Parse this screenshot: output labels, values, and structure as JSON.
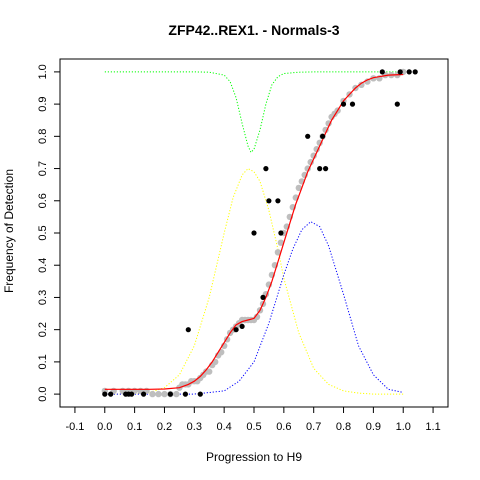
{
  "chart_data": {
    "type": "scatter",
    "title": "ZFP42..REX1. - Normals-3",
    "xlabel": "Progression to H9",
    "ylabel": "Frequency of Detection",
    "xlim": [
      -0.15,
      1.15
    ],
    "ylim": [
      -0.04,
      1.04
    ],
    "xticks": [
      -0.1,
      0.0,
      0.1,
      0.2,
      0.3,
      0.4,
      0.5,
      0.6,
      0.7,
      0.8,
      0.9,
      1.0,
      1.1
    ],
    "xtick_labels": [
      "-0.1",
      "0.0",
      "0.1",
      "0.2",
      "0.3",
      "0.4",
      "0.5",
      "0.6",
      "0.7",
      "0.8",
      "0.9",
      "1.0",
      "1.1"
    ],
    "yticks": [
      0.0,
      0.1,
      0.2,
      0.3,
      0.4,
      0.5,
      0.6,
      0.7,
      0.8,
      0.9,
      1.0
    ],
    "ytick_labels": [
      "0.0",
      "0.1",
      "0.2",
      "0.3",
      "0.4",
      "0.5",
      "0.6",
      "0.7",
      "0.8",
      "0.9",
      "1.0"
    ],
    "colors": {
      "observed": "#000000",
      "smoothed": "#bebebe",
      "fit": "#ff0000",
      "green_curve": "#00ff00",
      "yellow_curve": "#ffff00",
      "blue_curve": "#0000ff",
      "frame": "#000000"
    },
    "series": [
      {
        "kind": "observed-points",
        "x": [
          0.0,
          0.02,
          0.07,
          0.08,
          0.09,
          0.13,
          0.22,
          0.27,
          0.28,
          0.32,
          0.44,
          0.46,
          0.5,
          0.53,
          0.54,
          0.55,
          0.58,
          0.59,
          0.68,
          0.72,
          0.73,
          0.74,
          0.8,
          0.83,
          0.93,
          0.98,
          0.99,
          1.02,
          1.04
        ],
        "y": [
          0.0,
          0.0,
          0.0,
          0.0,
          0.0,
          0.0,
          0.0,
          0.0,
          0.2,
          0.0,
          0.2,
          0.21,
          0.5,
          0.3,
          0.7,
          0.6,
          0.6,
          0.5,
          0.8,
          0.7,
          0.8,
          0.7,
          0.9,
          0.9,
          1.0,
          0.9,
          1.0,
          1.0,
          1.0
        ]
      },
      {
        "kind": "smoothed-points",
        "x": [
          0.0,
          0.03,
          0.06,
          0.08,
          0.1,
          0.12,
          0.14,
          0.16,
          0.18,
          0.2,
          0.22,
          0.24,
          0.25,
          0.26,
          0.27,
          0.28,
          0.29,
          0.3,
          0.31,
          0.32,
          0.33,
          0.34,
          0.35,
          0.36,
          0.37,
          0.38,
          0.39,
          0.4,
          0.41,
          0.42,
          0.43,
          0.44,
          0.45,
          0.46,
          0.47,
          0.48,
          0.49,
          0.5,
          0.51,
          0.52,
          0.53,
          0.54,
          0.55,
          0.56,
          0.57,
          0.58,
          0.59,
          0.6,
          0.61,
          0.62,
          0.63,
          0.64,
          0.65,
          0.66,
          0.67,
          0.68,
          0.69,
          0.7,
          0.71,
          0.72,
          0.73,
          0.74,
          0.75,
          0.76,
          0.77,
          0.78,
          0.8,
          0.82,
          0.84,
          0.86,
          0.88,
          0.9,
          0.92,
          0.94,
          0.96,
          0.98,
          1.0
        ],
        "y": [
          0.01,
          0.01,
          0.01,
          0.01,
          0.01,
          0.01,
          0.01,
          0.0,
          0.0,
          0.0,
          0.0,
          0.0,
          0.02,
          0.03,
          0.03,
          0.03,
          0.04,
          0.04,
          0.04,
          0.05,
          0.06,
          0.07,
          0.07,
          0.09,
          0.1,
          0.12,
          0.13,
          0.15,
          0.17,
          0.19,
          0.2,
          0.21,
          0.22,
          0.23,
          0.23,
          0.23,
          0.23,
          0.23,
          0.24,
          0.26,
          0.28,
          0.31,
          0.34,
          0.37,
          0.4,
          0.44,
          0.47,
          0.5,
          0.52,
          0.55,
          0.58,
          0.61,
          0.64,
          0.66,
          0.68,
          0.7,
          0.72,
          0.74,
          0.76,
          0.78,
          0.8,
          0.82,
          0.84,
          0.86,
          0.87,
          0.88,
          0.91,
          0.93,
          0.95,
          0.96,
          0.97,
          0.98,
          0.98,
          0.99,
          0.99,
          0.99,
          1.0
        ]
      },
      {
        "kind": "fit-line",
        "x": [
          0.0,
          0.05,
          0.1,
          0.15,
          0.2,
          0.25,
          0.28,
          0.3,
          0.32,
          0.34,
          0.36,
          0.38,
          0.4,
          0.42,
          0.44,
          0.46,
          0.48,
          0.5,
          0.52,
          0.54,
          0.56,
          0.58,
          0.6,
          0.62,
          0.64,
          0.66,
          0.68,
          0.7,
          0.72,
          0.74,
          0.76,
          0.78,
          0.8,
          0.82,
          0.84,
          0.86,
          0.88,
          0.9,
          0.95,
          1.0
        ],
        "y": [
          0.015,
          0.015,
          0.015,
          0.015,
          0.016,
          0.02,
          0.03,
          0.04,
          0.055,
          0.075,
          0.1,
          0.13,
          0.16,
          0.19,
          0.215,
          0.225,
          0.23,
          0.235,
          0.26,
          0.3,
          0.35,
          0.41,
          0.47,
          0.53,
          0.59,
          0.64,
          0.69,
          0.73,
          0.77,
          0.81,
          0.85,
          0.88,
          0.91,
          0.93,
          0.95,
          0.965,
          0.975,
          0.982,
          0.99,
          0.992
        ]
      },
      {
        "kind": "green-dotted",
        "x": [
          0.0,
          0.1,
          0.2,
          0.3,
          0.35,
          0.4,
          0.42,
          0.44,
          0.46,
          0.48,
          0.49,
          0.5,
          0.52,
          0.54,
          0.56,
          0.58,
          0.6,
          0.65,
          0.7,
          0.8,
          0.9,
          1.0
        ],
        "y": [
          1.0,
          1.0,
          1.0,
          1.0,
          0.999,
          0.99,
          0.97,
          0.92,
          0.84,
          0.77,
          0.75,
          0.76,
          0.82,
          0.9,
          0.96,
          0.985,
          0.995,
          0.999,
          1.0,
          1.0,
          1.0,
          1.0
        ]
      },
      {
        "kind": "yellow-dotted",
        "x": [
          0.0,
          0.1,
          0.15,
          0.2,
          0.25,
          0.3,
          0.35,
          0.4,
          0.43,
          0.46,
          0.48,
          0.5,
          0.52,
          0.55,
          0.58,
          0.6,
          0.65,
          0.7,
          0.75,
          0.8,
          0.85,
          0.9,
          1.0
        ],
        "y": [
          0.0,
          0.0,
          0.005,
          0.02,
          0.06,
          0.15,
          0.3,
          0.5,
          0.61,
          0.68,
          0.7,
          0.69,
          0.66,
          0.57,
          0.45,
          0.36,
          0.19,
          0.08,
          0.03,
          0.01,
          0.003,
          0.0,
          0.0
        ]
      },
      {
        "kind": "blue-dotted",
        "x": [
          0.0,
          0.2,
          0.3,
          0.4,
          0.45,
          0.5,
          0.55,
          0.6,
          0.63,
          0.66,
          0.69,
          0.72,
          0.75,
          0.8,
          0.85,
          0.9,
          0.95,
          1.0
        ],
        "y": [
          0.0,
          0.0,
          0.0,
          0.01,
          0.04,
          0.1,
          0.22,
          0.37,
          0.45,
          0.51,
          0.535,
          0.52,
          0.46,
          0.31,
          0.15,
          0.06,
          0.015,
          0.005
        ]
      }
    ]
  }
}
